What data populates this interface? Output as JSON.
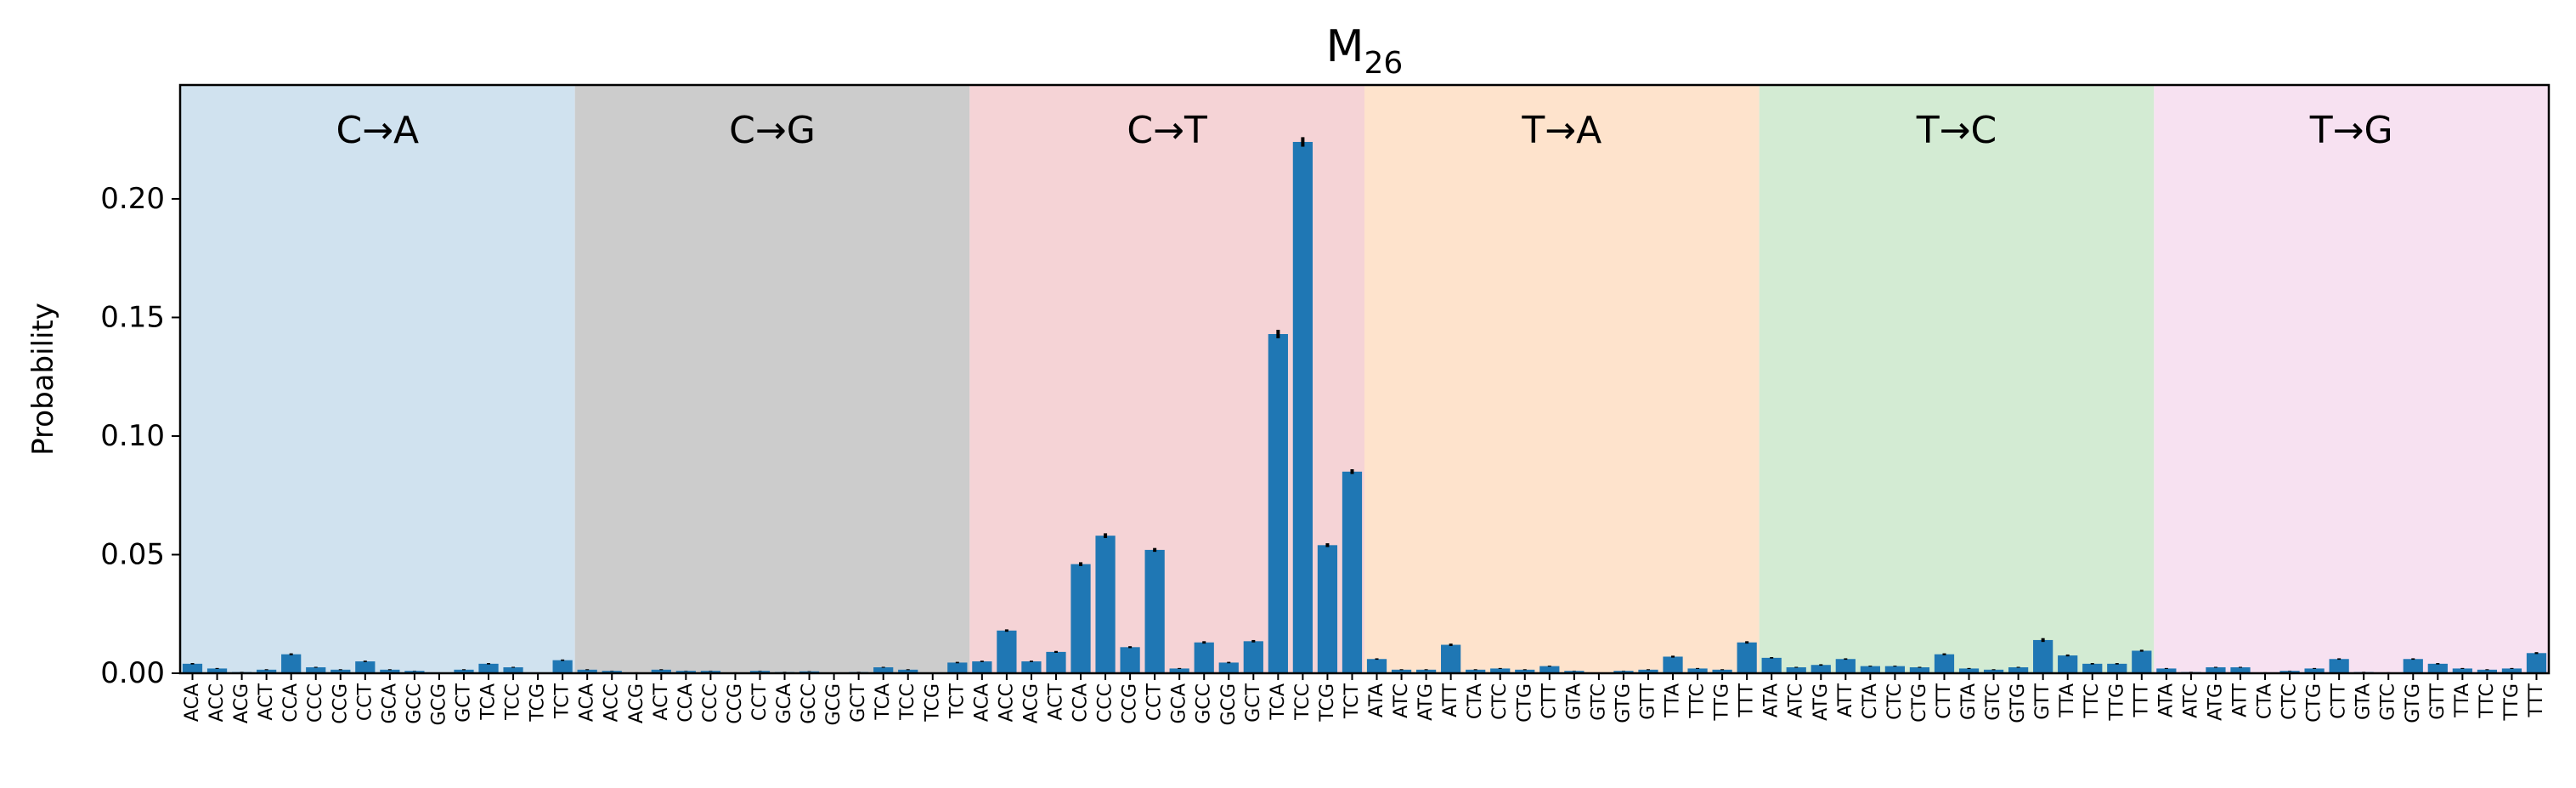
{
  "chart_data": {
    "type": "bar",
    "title": "M",
    "title_subscript": "26",
    "xlabel": "",
    "ylabel": "Probability",
    "ylim": [
      0,
      0.248
    ],
    "yticks": [
      0.0,
      0.05,
      0.1,
      0.15,
      0.2
    ],
    "ytick_labels": [
      "0.00",
      "0.05",
      "0.10",
      "0.15",
      "0.20"
    ],
    "grid": false,
    "bar_color": "#1f77b4",
    "error_color": "#000000",
    "groups": [
      {
        "label": "C→A",
        "color": "#d0e2ef",
        "categories": [
          "ACA",
          "ACC",
          "ACG",
          "ACT",
          "CCA",
          "CCC",
          "CCG",
          "CCT",
          "GCA",
          "GCC",
          "GCG",
          "GCT",
          "TCA",
          "TCC",
          "TCG",
          "TCT"
        ],
        "values": [
          0.004,
          0.002,
          0.0005,
          0.0015,
          0.008,
          0.0025,
          0.0015,
          0.005,
          0.0015,
          0.001,
          0.0002,
          0.0015,
          0.004,
          0.0025,
          0.0002,
          0.0055
        ],
        "errors": [
          0.0003,
          0.0002,
          0.0001,
          0.0002,
          0.0004,
          0.0002,
          0.0002,
          0.0003,
          0.0002,
          0.0001,
          0.0001,
          0.0002,
          0.0003,
          0.0002,
          0.0001,
          0.0003
        ]
      },
      {
        "label": "C→G",
        "color": "#cccccc",
        "categories": [
          "ACA",
          "ACC",
          "ACG",
          "ACT",
          "CCA",
          "CCC",
          "CCG",
          "CCT",
          "GCA",
          "GCC",
          "GCG",
          "GCT",
          "TCA",
          "TCC",
          "TCG",
          "TCT"
        ],
        "values": [
          0.0015,
          0.001,
          0.0003,
          0.0015,
          0.001,
          0.001,
          0.0003,
          0.001,
          0.0005,
          0.0008,
          0.0002,
          0.0005,
          0.0025,
          0.0015,
          0.0002,
          0.0045
        ],
        "errors": [
          0.0002,
          0.0001,
          0.0001,
          0.0002,
          0.0001,
          0.0001,
          0.0001,
          0.0001,
          0.0001,
          0.0001,
          0.0001,
          0.0001,
          0.0002,
          0.0002,
          0.0001,
          0.0003
        ]
      },
      {
        "label": "C→T",
        "color": "#f5d3d6",
        "categories": [
          "ACA",
          "ACC",
          "ACG",
          "ACT",
          "CCA",
          "CCC",
          "CCG",
          "CCT",
          "GCA",
          "GCC",
          "GCG",
          "GCT",
          "TCA",
          "TCC",
          "TCG",
          "TCT"
        ],
        "values": [
          0.005,
          0.018,
          0.005,
          0.009,
          0.046,
          0.058,
          0.011,
          0.052,
          0.002,
          0.013,
          0.0045,
          0.0135,
          0.143,
          0.224,
          0.054,
          0.085
        ],
        "errors": [
          0.0003,
          0.0005,
          0.0003,
          0.0004,
          0.0008,
          0.001,
          0.0004,
          0.0008,
          0.0002,
          0.0005,
          0.0003,
          0.0005,
          0.0018,
          0.002,
          0.0008,
          0.001
        ]
      },
      {
        "label": "T→A",
        "color": "#fee3cc",
        "categories": [
          "ATA",
          "ATC",
          "ATG",
          "ATT",
          "CTA",
          "CTC",
          "CTG",
          "CTT",
          "GTA",
          "GTC",
          "GTG",
          "GTT",
          "TTA",
          "TTC",
          "TTG",
          "TTT"
        ],
        "values": [
          0.006,
          0.0015,
          0.0015,
          0.012,
          0.0015,
          0.002,
          0.0015,
          0.003,
          0.001,
          0.0002,
          0.001,
          0.0015,
          0.007,
          0.002,
          0.0015,
          0.013
        ],
        "errors": [
          0.0003,
          0.0002,
          0.0002,
          0.0005,
          0.0002,
          0.0002,
          0.0002,
          0.0002,
          0.0001,
          0.0001,
          0.0001,
          0.0002,
          0.0004,
          0.0002,
          0.0002,
          0.0005
        ]
      },
      {
        "label": "T→C",
        "color": "#d3ebd3",
        "categories": [
          "ATA",
          "ATC",
          "ATG",
          "ATT",
          "CTA",
          "CTC",
          "CTG",
          "CTT",
          "GTA",
          "GTC",
          "GTG",
          "GTT",
          "TTA",
          "TTC",
          "TTG",
          "TTT"
        ],
        "values": [
          0.0065,
          0.0025,
          0.0035,
          0.006,
          0.003,
          0.003,
          0.0025,
          0.008,
          0.002,
          0.0015,
          0.0025,
          0.014,
          0.0075,
          0.004,
          0.004,
          0.0095
        ],
        "errors": [
          0.0003,
          0.0002,
          0.0003,
          0.0003,
          0.0002,
          0.0002,
          0.0002,
          0.0004,
          0.0002,
          0.0002,
          0.0002,
          0.0008,
          0.0004,
          0.0003,
          0.0003,
          0.0004
        ]
      },
      {
        "label": "T→G",
        "color": "#f7e1f1",
        "categories": [
          "ATA",
          "ATC",
          "ATG",
          "ATT",
          "CTA",
          "CTC",
          "CTG",
          "CTT",
          "GTA",
          "GTC",
          "GTG",
          "GTT",
          "TTA",
          "TTC",
          "TTG",
          "TTT"
        ],
        "values": [
          0.002,
          0.0005,
          0.0025,
          0.0025,
          0.0003,
          0.001,
          0.002,
          0.006,
          0.0005,
          0.0003,
          0.006,
          0.004,
          0.002,
          0.0015,
          0.002,
          0.0085
        ],
        "errors": [
          0.0002,
          0.0001,
          0.0002,
          0.0002,
          0.0001,
          0.0001,
          0.0002,
          0.0003,
          0.0001,
          0.0001,
          0.0003,
          0.0003,
          0.0002,
          0.0002,
          0.0002,
          0.0004
        ]
      }
    ]
  }
}
